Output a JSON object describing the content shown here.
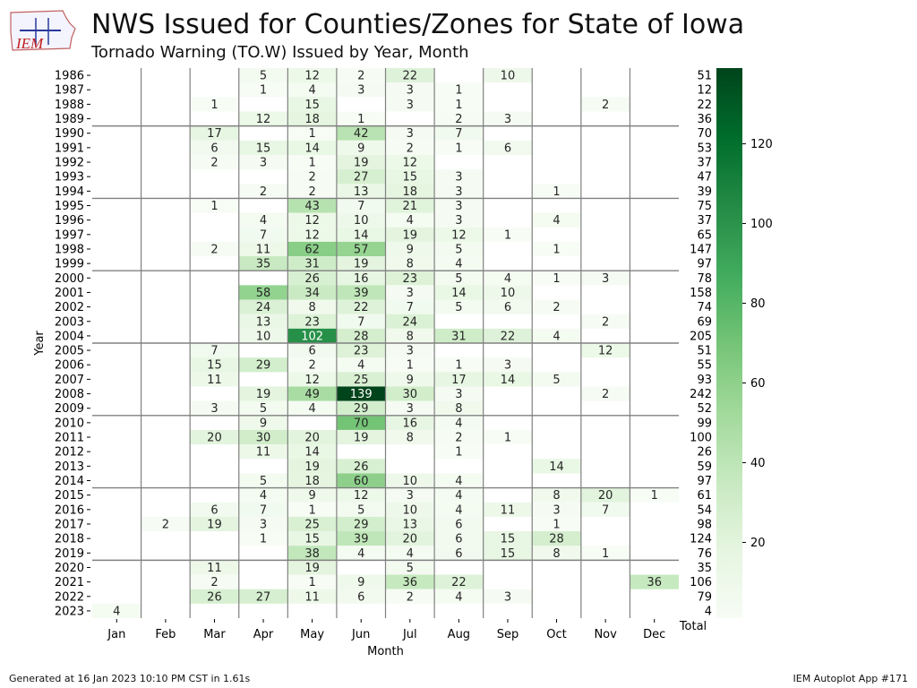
{
  "header": {
    "title": "NWS Issued for Counties/Zones for State of Iowa",
    "subtitle": "Tornado Warning (TO.W) Issued by Year, Month",
    "logo_text": "IEM"
  },
  "footer": {
    "generated": "Generated at 16 Jan 2023 10:10 PM CST in 1.61s",
    "app": "IEM Autoplot App #171"
  },
  "colors": {
    "cmap_low": "#f7fcf5",
    "cmap_high": "#00441b",
    "grid_line": "#808080"
  },
  "chart_data": {
    "type": "heatmap",
    "title": "NWS Issued for Counties/Zones for State of Iowa",
    "subtitle": "Tornado Warning (TO.W) Issued by Year, Month",
    "xlabel": "Month",
    "ylabel": "Year",
    "total_label": "Total",
    "months": [
      "Jan",
      "Feb",
      "Mar",
      "Apr",
      "May",
      "Jun",
      "Jul",
      "Aug",
      "Sep",
      "Oct",
      "Nov",
      "Dec"
    ],
    "years": [
      1986,
      1987,
      1988,
      1989,
      1990,
      1991,
      1992,
      1993,
      1994,
      1995,
      1996,
      1997,
      1998,
      1999,
      2000,
      2001,
      2002,
      2003,
      2004,
      2005,
      2006,
      2007,
      2008,
      2009,
      2010,
      2011,
      2012,
      2013,
      2014,
      2015,
      2016,
      2017,
      2018,
      2019,
      2020,
      2021,
      2022,
      2023
    ],
    "values": [
      [
        null,
        null,
        null,
        5,
        12,
        2,
        22,
        null,
        10,
        null,
        null,
        null
      ],
      [
        null,
        null,
        null,
        1,
        4,
        3,
        3,
        1,
        null,
        null,
        null,
        null
      ],
      [
        null,
        null,
        1,
        null,
        15,
        null,
        3,
        1,
        null,
        null,
        2,
        null
      ],
      [
        null,
        null,
        null,
        12,
        18,
        1,
        null,
        2,
        3,
        null,
        null,
        null
      ],
      [
        null,
        null,
        17,
        null,
        1,
        42,
        3,
        7,
        null,
        null,
        null,
        null
      ],
      [
        null,
        null,
        6,
        15,
        14,
        9,
        2,
        1,
        6,
        null,
        null,
        null
      ],
      [
        null,
        null,
        2,
        3,
        1,
        19,
        12,
        null,
        null,
        null,
        null,
        null
      ],
      [
        null,
        null,
        null,
        null,
        2,
        27,
        15,
        3,
        null,
        null,
        null,
        null
      ],
      [
        null,
        null,
        null,
        2,
        2,
        13,
        18,
        3,
        null,
        1,
        null,
        null
      ],
      [
        null,
        null,
        1,
        null,
        43,
        7,
        21,
        3,
        null,
        null,
        null,
        null
      ],
      [
        null,
        null,
        null,
        4,
        12,
        10,
        4,
        3,
        null,
        4,
        null,
        null
      ],
      [
        null,
        null,
        null,
        7,
        12,
        14,
        19,
        12,
        1,
        null,
        null,
        null
      ],
      [
        null,
        null,
        2,
        11,
        62,
        57,
        9,
        5,
        null,
        1,
        null,
        null
      ],
      [
        null,
        null,
        null,
        35,
        31,
        19,
        8,
        4,
        null,
        null,
        null,
        null
      ],
      [
        null,
        null,
        null,
        null,
        26,
        16,
        23,
        5,
        4,
        1,
        3,
        null
      ],
      [
        null,
        null,
        null,
        58,
        34,
        39,
        3,
        14,
        10,
        null,
        null,
        null
      ],
      [
        null,
        null,
        null,
        24,
        8,
        22,
        7,
        5,
        6,
        2,
        null,
        null
      ],
      [
        null,
        null,
        null,
        13,
        23,
        7,
        24,
        null,
        null,
        null,
        2,
        null
      ],
      [
        null,
        null,
        null,
        10,
        102,
        28,
        8,
        31,
        22,
        4,
        null,
        null
      ],
      [
        null,
        null,
        7,
        null,
        6,
        23,
        3,
        null,
        null,
        null,
        12,
        null
      ],
      [
        null,
        null,
        15,
        29,
        2,
        4,
        1,
        1,
        3,
        null,
        null,
        null
      ],
      [
        null,
        null,
        11,
        null,
        12,
        25,
        9,
        17,
        14,
        5,
        null,
        null
      ],
      [
        null,
        null,
        null,
        19,
        49,
        139,
        30,
        3,
        null,
        null,
        2,
        null
      ],
      [
        null,
        null,
        3,
        5,
        4,
        29,
        3,
        8,
        null,
        null,
        null,
        null
      ],
      [
        null,
        null,
        null,
        9,
        null,
        70,
        16,
        4,
        null,
        null,
        null,
        null
      ],
      [
        null,
        null,
        20,
        30,
        20,
        19,
        8,
        2,
        1,
        null,
        null,
        null
      ],
      [
        null,
        null,
        null,
        11,
        14,
        null,
        null,
        1,
        null,
        null,
        null,
        null
      ],
      [
        null,
        null,
        null,
        null,
        19,
        26,
        null,
        null,
        null,
        14,
        null,
        null
      ],
      [
        null,
        null,
        null,
        5,
        18,
        60,
        10,
        4,
        null,
        null,
        null,
        null
      ],
      [
        null,
        null,
        null,
        4,
        9,
        12,
        3,
        4,
        null,
        8,
        20,
        1
      ],
      [
        null,
        null,
        6,
        7,
        1,
        5,
        10,
        4,
        11,
        3,
        7,
        null
      ],
      [
        null,
        2,
        19,
        3,
        25,
        29,
        13,
        6,
        null,
        1,
        null,
        null
      ],
      [
        null,
        null,
        null,
        1,
        15,
        39,
        20,
        6,
        15,
        28,
        null,
        null
      ],
      [
        null,
        null,
        null,
        null,
        38,
        4,
        4,
        6,
        15,
        8,
        1,
        null
      ],
      [
        null,
        null,
        11,
        null,
        19,
        null,
        5,
        null,
        null,
        null,
        null,
        null
      ],
      [
        null,
        null,
        2,
        null,
        1,
        9,
        36,
        22,
        null,
        null,
        null,
        36
      ],
      [
        null,
        null,
        26,
        27,
        11,
        6,
        2,
        4,
        3,
        null,
        null,
        null
      ],
      [
        4,
        null,
        null,
        null,
        null,
        null,
        null,
        null,
        null,
        null,
        null,
        null
      ]
    ],
    "totals": [
      51,
      12,
      22,
      36,
      70,
      53,
      37,
      47,
      39,
      75,
      37,
      65,
      147,
      97,
      78,
      158,
      74,
      69,
      205,
      51,
      55,
      93,
      242,
      52,
      99,
      100,
      26,
      59,
      97,
      61,
      54,
      98,
      124,
      76,
      35,
      106,
      79,
      4
    ],
    "separator_after_years": [
      1989,
      1994,
      1999,
      2004,
      2009,
      2014,
      2019
    ],
    "colorbar": {
      "min": 1,
      "max": 139,
      "ticks": [
        20,
        40,
        60,
        80,
        100,
        120
      ]
    }
  }
}
